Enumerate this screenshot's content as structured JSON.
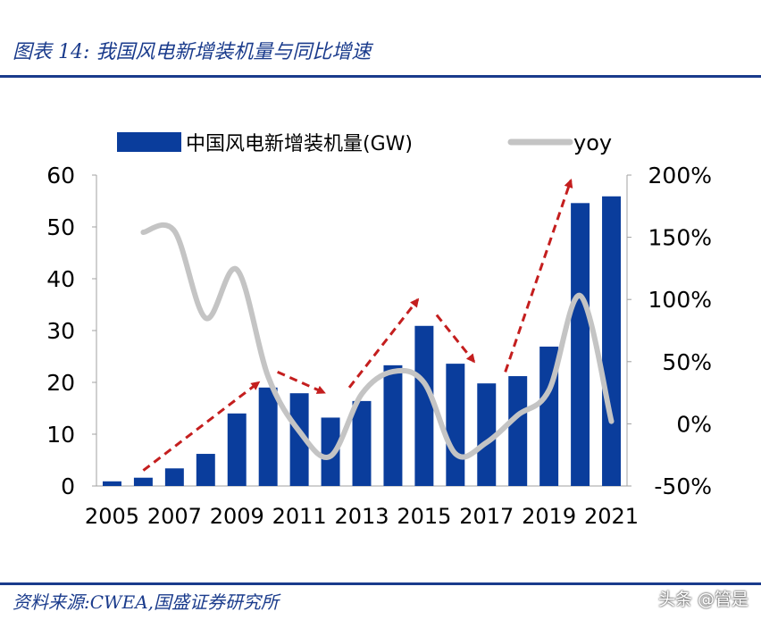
{
  "figure": {
    "title": "图表 14:  我国风电新增装机量与同比增速",
    "source": "资料来源:CWEA,国盛证券研究所",
    "watermark": "头条 @管是"
  },
  "colors": {
    "bar": "#0a3d9c",
    "line": "#c4c4c4",
    "arrow": "#c41e1e",
    "text": "#000000",
    "brand": "#1a3b8c"
  },
  "chart_data": {
    "type": "bar",
    "categories": [
      "2005",
      "2006",
      "2007",
      "2008",
      "2009",
      "2010",
      "2011",
      "2012",
      "2013",
      "2014",
      "2015",
      "2016",
      "2017",
      "2018",
      "2019",
      "2020",
      "2021"
    ],
    "x_tick_labels": [
      "2005",
      "2007",
      "2009",
      "2011",
      "2013",
      "2015",
      "2017",
      "2019",
      "2021"
    ],
    "series": [
      {
        "name": "中国风电新增装机量(GW)",
        "type": "bar",
        "axis": "left",
        "values": [
          0.9,
          1.6,
          3.4,
          6.2,
          14.0,
          19.0,
          17.9,
          13.2,
          16.4,
          23.3,
          30.9,
          23.6,
          19.8,
          21.2,
          26.9,
          54.6,
          55.9
        ]
      },
      {
        "name": "yoy",
        "type": "line",
        "axis": "right",
        "values": [
          null,
          154,
          155,
          85,
          124,
          38,
          -6,
          -26,
          24,
          42,
          33,
          -24,
          -15,
          7,
          27,
          103,
          2
        ]
      }
    ],
    "left_axis": {
      "ylim": [
        0,
        60
      ],
      "ticks": [
        "0",
        "10",
        "20",
        "30",
        "40",
        "50",
        "60"
      ]
    },
    "right_axis": {
      "ylim": [
        -50,
        200
      ],
      "ticks": [
        "-50%",
        "0%",
        "50%",
        "100%",
        "150%",
        "200%"
      ]
    },
    "legend": {
      "position": "top",
      "bar_label": "中国风电新增装机量(GW)",
      "line_label": "yoy"
    },
    "annotations": [
      {
        "type": "dashed-arrow",
        "from": [
          "2006",
          3
        ],
        "to": [
          "2009.7",
          20
        ]
      },
      {
        "type": "dashed-arrow",
        "from": [
          "2010.3",
          22
        ],
        "to": [
          "2011.8",
          18
        ]
      },
      {
        "type": "dashed-arrow",
        "from": [
          "2012.6",
          19
        ],
        "to": [
          "2014.8",
          36
        ]
      },
      {
        "type": "dashed-arrow",
        "from": [
          "2015.4",
          33
        ],
        "to": [
          "2016.6",
          24
        ]
      },
      {
        "type": "dashed-arrow",
        "from": [
          "2017.6",
          22
        ],
        "to": [
          "2019.7",
          59
        ]
      }
    ]
  }
}
